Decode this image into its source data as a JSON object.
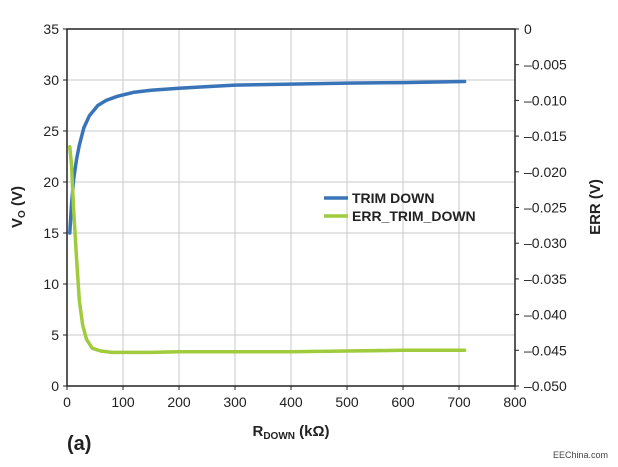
{
  "chart_data": {
    "type": "line",
    "panel_label": "(a)",
    "credit": "EEChina.com",
    "x_axis": {
      "label_main": "R",
      "label_sub": "DOWN",
      "label_unit": " (kΩ)",
      "range": [
        0,
        800
      ],
      "ticks": [
        0,
        100,
        200,
        300,
        400,
        500,
        600,
        700,
        800
      ]
    },
    "y_left": {
      "label_main": "V",
      "label_sub": "O",
      "label_unit": " (V)",
      "range": [
        0,
        35
      ],
      "ticks": [
        0,
        5,
        10,
        15,
        20,
        25,
        30,
        35
      ]
    },
    "y_right": {
      "label": "ERR (V)",
      "range": [
        -0.05,
        0
      ],
      "ticks": [
        0,
        -0.005,
        -0.01,
        -0.015,
        -0.02,
        -0.025,
        -0.03,
        -0.035,
        -0.04,
        -0.045,
        -0.05
      ],
      "tick_labels": [
        "0",
        "–0.005",
        "–0.010",
        "–0.015",
        "–0.020",
        "–0.025",
        "–0.030",
        "–0.035",
        "–0.040",
        "–0.045",
        "–0.050"
      ]
    },
    "grid": true,
    "legend_position": "right-middle",
    "series": [
      {
        "name": "TRIM DOWN",
        "axis": "left",
        "color": "#3a74b8",
        "x": [
          5,
          8,
          12,
          17,
          22,
          30,
          40,
          55,
          70,
          90,
          120,
          150,
          200,
          250,
          300,
          400,
          500,
          600,
          710
        ],
        "y": [
          15.0,
          17.8,
          20.3,
          22.2,
          23.6,
          25.3,
          26.5,
          27.5,
          28.0,
          28.4,
          28.8,
          29.0,
          29.2,
          29.35,
          29.5,
          29.6,
          29.7,
          29.75,
          29.85
        ]
      },
      {
        "name": "ERR_TRIM_DOWN",
        "axis": "right",
        "color": "#9fcb3c",
        "x": [
          5,
          8,
          12,
          17,
          22,
          28,
          35,
          45,
          60,
          80,
          100,
          150,
          200,
          300,
          400,
          500,
          600,
          710
        ],
        "y": [
          -0.0165,
          -0.019,
          -0.0255,
          -0.032,
          -0.038,
          -0.0415,
          -0.0435,
          -0.0447,
          -0.0451,
          -0.0453,
          -0.0453,
          -0.0453,
          -0.0452,
          -0.0452,
          -0.0452,
          -0.0451,
          -0.045,
          -0.045
        ]
      }
    ]
  }
}
